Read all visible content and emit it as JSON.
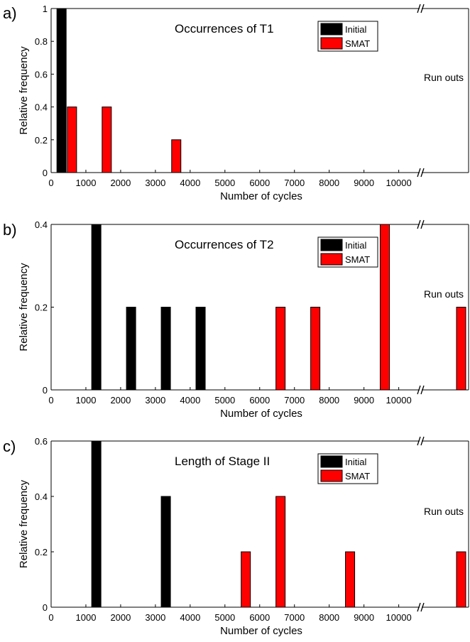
{
  "colors": {
    "initial": "#000000",
    "smat": "#ff0000",
    "axis": "#000000"
  },
  "chart_data": [
    {
      "type": "bar",
      "panel_label": "a)",
      "title": "Occurrences of T1",
      "xlabel": "Number of cycles",
      "ylabel": "Relative frequency",
      "x_ticks": [
        0,
        1000,
        2000,
        3000,
        4000,
        5000,
        6000,
        7000,
        8000,
        9000,
        10000
      ],
      "y_ticks": [
        0,
        0.2,
        0.4,
        0.6,
        0.8,
        1
      ],
      "y_tick_labels": [
        "0",
        "0.2",
        "0.4",
        "0.6",
        "0.8",
        "1"
      ],
      "ylim": [
        0,
        1
      ],
      "runout_label": "Run outs",
      "legend": {
        "position": "top-right",
        "entries": [
          "Initial",
          "SMAT"
        ]
      },
      "series": [
        {
          "name": "Initial",
          "color": "#000000",
          "bars": [
            {
              "x": 300,
              "y": 1.0
            }
          ]
        },
        {
          "name": "SMAT",
          "color": "#ff0000",
          "bars": [
            {
              "x": 600,
              "y": 0.4
            },
            {
              "x": 1600,
              "y": 0.4
            },
            {
              "x": 3600,
              "y": 0.2
            }
          ]
        }
      ],
      "runout_bars": []
    },
    {
      "type": "bar",
      "panel_label": "b)",
      "title": "Occurrences of T2",
      "xlabel": "Number of cycles",
      "ylabel": "Relative frequency",
      "x_ticks": [
        0,
        1000,
        2000,
        3000,
        4000,
        5000,
        6000,
        7000,
        8000,
        9000,
        10000
      ],
      "y_ticks": [
        0,
        0.2,
        0.4
      ],
      "y_tick_labels": [
        "0",
        "0.2",
        "0.4"
      ],
      "ylim": [
        0,
        0.4
      ],
      "runout_label": "Run outs",
      "legend": {
        "position": "top-right",
        "entries": [
          "Initial",
          "SMAT"
        ]
      },
      "series": [
        {
          "name": "Initial",
          "color": "#000000",
          "bars": [
            {
              "x": 1300,
              "y": 0.4
            },
            {
              "x": 2300,
              "y": 0.2
            },
            {
              "x": 3300,
              "y": 0.2
            },
            {
              "x": 4300,
              "y": 0.2
            }
          ]
        },
        {
          "name": "SMAT",
          "color": "#ff0000",
          "bars": [
            {
              "x": 6600,
              "y": 0.2
            },
            {
              "x": 7600,
              "y": 0.2
            },
            {
              "x": 9600,
              "y": 0.4
            }
          ]
        }
      ],
      "runout_bars": [
        {
          "series": "SMAT",
          "y": 0.2
        }
      ]
    },
    {
      "type": "bar",
      "panel_label": "c)",
      "title": "Length of Stage II",
      "xlabel": "Number of cycles",
      "ylabel": "Relative frequency",
      "x_ticks": [
        0,
        1000,
        2000,
        3000,
        4000,
        5000,
        6000,
        7000,
        8000,
        9000,
        10000
      ],
      "y_ticks": [
        0,
        0.2,
        0.4,
        0.6
      ],
      "y_tick_labels": [
        "0",
        "0.2",
        "0.4",
        "0.6"
      ],
      "ylim": [
        0,
        0.6
      ],
      "runout_label": "Run outs",
      "legend": {
        "position": "top-right",
        "entries": [
          "Initial",
          "SMAT"
        ]
      },
      "series": [
        {
          "name": "Initial",
          "color": "#000000",
          "bars": [
            {
              "x": 1300,
              "y": 0.6
            },
            {
              "x": 3300,
              "y": 0.4
            }
          ]
        },
        {
          "name": "SMAT",
          "color": "#ff0000",
          "bars": [
            {
              "x": 5600,
              "y": 0.2
            },
            {
              "x": 6600,
              "y": 0.4
            },
            {
              "x": 8600,
              "y": 0.2
            }
          ]
        }
      ],
      "runout_bars": [
        {
          "series": "SMAT",
          "y": 0.2
        }
      ]
    }
  ]
}
